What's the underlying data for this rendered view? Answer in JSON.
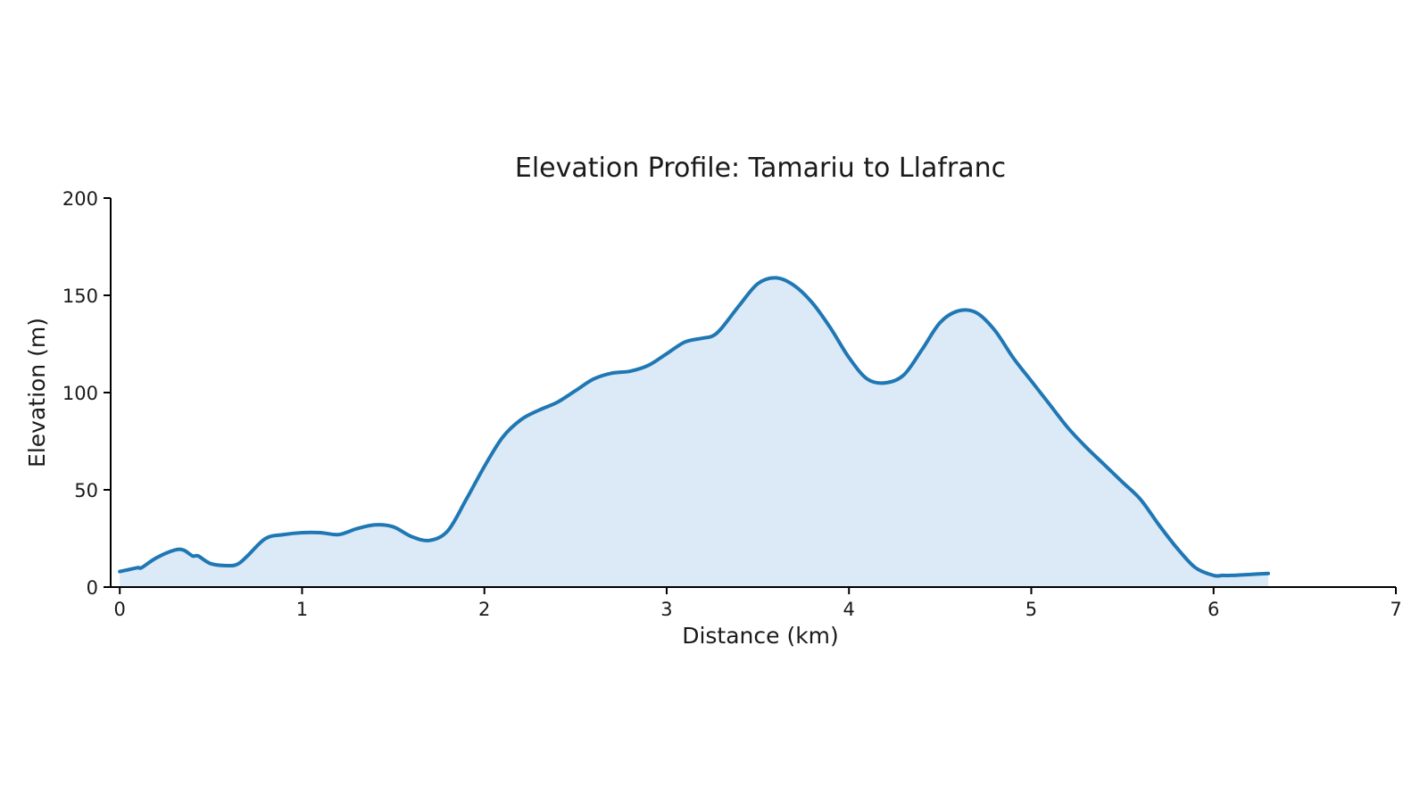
{
  "chart_data": {
    "type": "area",
    "title": "Elevation Profile: Tamariu to Llafranc",
    "xlabel": "Distance (km)",
    "ylabel": "Elevation (m)",
    "xlim": [
      -0.05,
      7
    ],
    "ylim": [
      0,
      200
    ],
    "xticks": [
      0,
      1,
      2,
      3,
      4,
      5,
      6,
      7
    ],
    "yticks": [
      0,
      50,
      100,
      150,
      200
    ],
    "grid": false,
    "colors": {
      "line": "#1f77b4",
      "fill": "#dbeaf6"
    },
    "series": [
      {
        "x": [
          0,
          0.05,
          0.1,
          0.12,
          0.2,
          0.3,
          0.35,
          0.4,
          0.43,
          0.5,
          0.6,
          0.65,
          0.7,
          0.8,
          0.9,
          1.0,
          1.1,
          1.2,
          1.3,
          1.4,
          1.5,
          1.6,
          1.7,
          1.8,
          1.9,
          2.0,
          2.1,
          2.2,
          2.3,
          2.4,
          2.5,
          2.6,
          2.7,
          2.8,
          2.9,
          3.0,
          3.1,
          3.2,
          3.25,
          3.3,
          3.4,
          3.5,
          3.6,
          3.7,
          3.8,
          3.9,
          4.0,
          4.1,
          4.2,
          4.3,
          4.4,
          4.5,
          4.6,
          4.7,
          4.8,
          4.9,
          5.0,
          5.1,
          5.2,
          5.3,
          5.4,
          5.5,
          5.6,
          5.7,
          5.8,
          5.9,
          6.0,
          6.05,
          6.1,
          6.2,
          6.3
        ],
        "y": [
          8,
          9,
          10,
          10,
          15,
          19,
          19,
          16,
          16,
          12,
          11,
          12,
          16,
          25,
          27,
          28,
          28,
          27,
          30,
          32,
          31,
          26,
          24,
          29,
          45,
          62,
          77,
          86,
          91,
          95,
          101,
          107,
          110,
          111,
          114,
          120,
          126,
          128,
          129,
          133,
          145,
          156,
          159,
          155,
          146,
          133,
          118,
          107,
          105,
          109,
          122,
          136,
          142,
          141,
          132,
          118,
          106,
          94,
          82,
          72,
          63,
          54,
          45,
          32,
          20,
          10,
          6,
          6,
          6,
          6.5,
          7
        ]
      }
    ]
  }
}
